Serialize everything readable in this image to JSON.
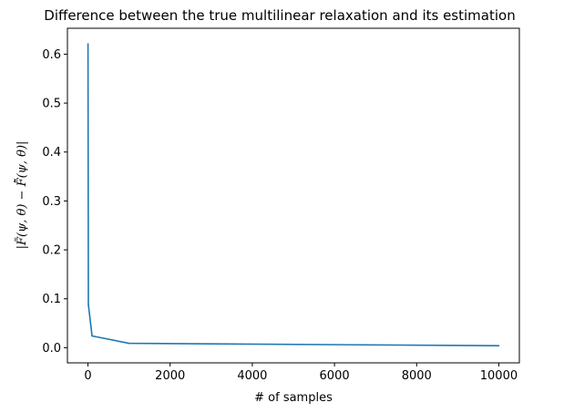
{
  "chart_data": {
    "type": "line",
    "title": "Difference between the true multilinear relaxation and its estimation",
    "xlabel": "# of samples",
    "ylabel": "|F̃(ψ, θ) − F̂̃(ψ, θ)|",
    "xlim": [
      -500,
      10500
    ],
    "ylim": [
      -0.031,
      0.653
    ],
    "xticks": [
      0,
      2000,
      4000,
      6000,
      8000,
      10000
    ],
    "xtick_labels": [
      "0",
      "2000",
      "4000",
      "6000",
      "8000",
      "10000"
    ],
    "yticks": [
      0.0,
      0.1,
      0.2,
      0.3,
      0.4,
      0.5,
      0.6
    ],
    "ytick_labels": [
      "0.0",
      "0.1",
      "0.2",
      "0.3",
      "0.4",
      "0.5",
      "0.6"
    ],
    "grid": false,
    "legend": "none",
    "series": [
      {
        "color": "#1f77b4",
        "x": [
          1,
          10,
          100,
          1000,
          10000
        ],
        "y": [
          0.621,
          0.088,
          0.024,
          0.009,
          0.004
        ]
      }
    ]
  }
}
